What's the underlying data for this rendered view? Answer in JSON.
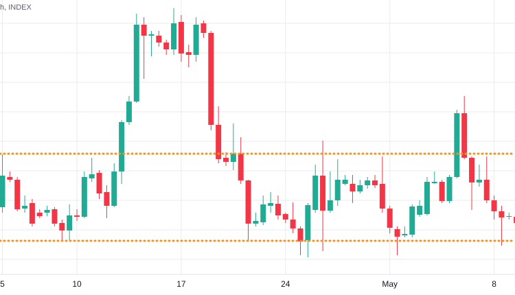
{
  "chart_data": {
    "type": "candlestick",
    "header": "h, INDEX",
    "categories": [
      "5",
      null,
      null,
      null,
      null,
      null,
      null,
      null,
      null,
      null,
      "10",
      null,
      null,
      null,
      null,
      null,
      null,
      null,
      null,
      null,
      null,
      null,
      null,
      null,
      "17",
      null,
      null,
      null,
      null,
      null,
      null,
      null,
      null,
      null,
      null,
      null,
      null,
      null,
      "24",
      null,
      null,
      null,
      null,
      null,
      null,
      null,
      null,
      null,
      null,
      null,
      null,
      null,
      "May",
      null,
      null,
      null,
      null,
      null,
      null,
      null,
      null,
      null,
      null,
      null,
      null,
      null,
      "8",
      null,
      null,
      null
    ],
    "open": [
      128,
      172,
      168,
      126,
      134,
      120,
      120,
      125,
      105,
      94,
      116,
      114,
      170,
      178,
      150,
      130,
      180,
      252,
      282,
      394,
      378,
      378,
      368,
      358,
      398,
      354,
      350,
      396,
      382,
      248,
      200,
      194,
      206,
      167,
      104,
      106,
      130,
      133,
      118,
      110,
      97,
      80,
      124,
      174,
      123,
      138,
      162,
      162,
      151,
      160,
      167,
      162,
      126,
      96,
      87,
      88,
      117,
      118,
      163,
      165,
      137,
      172,
      265,
      200,
      164,
      168,
      138,
      122,
      114,
      114
    ],
    "high": [
      205,
      180,
      172,
      145,
      140,
      125,
      130,
      128,
      110,
      132,
      125,
      180,
      200,
      182,
      160,
      192,
      255,
      290,
      410,
      405,
      385,
      385,
      372,
      418,
      408,
      365,
      405,
      400,
      385,
      275,
      208,
      250,
      230,
      168,
      120,
      145,
      150,
      145,
      120,
      135,
      100,
      134,
      190,
      225,
      180,
      198,
      175,
      175,
      168,
      172,
      175,
      202,
      130,
      100,
      100,
      132,
      138,
      172,
      180,
      168,
      175,
      270,
      290,
      202,
      190,
      202,
      145,
      130,
      120,
      122
    ],
    "low": [
      120,
      165,
      122,
      120,
      100,
      112,
      115,
      100,
      80,
      80,
      108,
      112,
      165,
      140,
      112,
      128,
      162,
      248,
      280,
      315,
      348,
      362,
      350,
      350,
      340,
      332,
      340,
      375,
      240,
      192,
      188,
      182,
      162,
      78,
      100,
      102,
      120,
      110,
      105,
      90,
      58,
      55,
      120,
      64,
      120,
      130,
      160,
      134,
      148,
      155,
      156,
      120,
      90,
      58,
      84,
      84,
      114,
      116,
      162,
      134,
      134,
      170,
      198,
      124,
      158,
      134,
      110,
      72,
      110,
      100
    ],
    "close": [
      174,
      168,
      125,
      130,
      104,
      115,
      124,
      104,
      94,
      116,
      114,
      172,
      176,
      148,
      130,
      180,
      252,
      282,
      394,
      378,
      380,
      368,
      358,
      396,
      352,
      350,
      394,
      382,
      248,
      198,
      194,
      206,
      167,
      104,
      108,
      132,
      134,
      116,
      110,
      97,
      78,
      131,
      174,
      123,
      138,
      168,
      168,
      151,
      160,
      167,
      160,
      126,
      98,
      85,
      89,
      129,
      130,
      165,
      165,
      137,
      172,
      265,
      200,
      164,
      168,
      138,
      122,
      113,
      115,
      105
    ],
    "up_color": "#22ab94",
    "down_color": "#f23645",
    "hlines": [
      206,
      79
    ],
    "hline_color": "#f7931a",
    "ylim": [
      0,
      430
    ],
    "yticks": [
      396,
      353,
      310,
      267,
      224,
      181,
      138,
      95,
      52
    ],
    "grid": true
  }
}
